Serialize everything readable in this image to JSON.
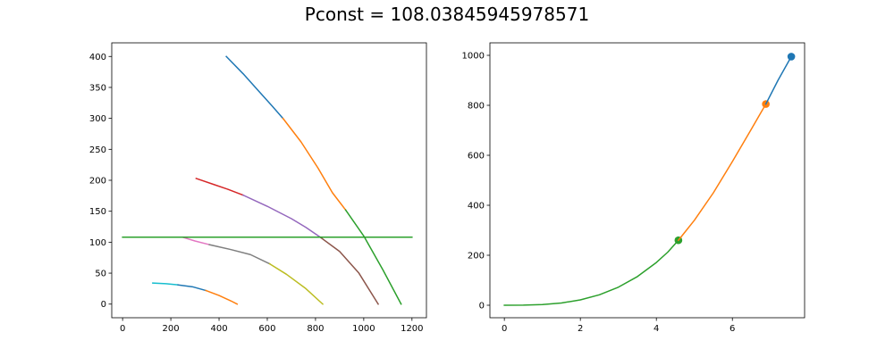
{
  "suptitle": "Pconst = 108.03845945978571",
  "chart_data": [
    {
      "type": "line",
      "xlim": [
        -45,
        1260
      ],
      "ylim": [
        -22,
        422
      ],
      "xticks": [
        0,
        200,
        400,
        600,
        800,
        1000,
        1200
      ],
      "yticks": [
        0,
        50,
        100,
        150,
        200,
        250,
        300,
        350,
        400
      ],
      "grid": false,
      "series": [
        {
          "color": "#1f77b4",
          "x": [
            430,
            500,
            560,
            620,
            665
          ],
          "y": [
            400,
            372,
            346,
            320,
            300
          ]
        },
        {
          "color": "#ff7f0e",
          "x": [
            665,
            740,
            810,
            870,
            925
          ],
          "y": [
            300,
            262,
            220,
            180,
            152
          ]
        },
        {
          "color": "#2ca02c",
          "x": [
            925,
            1000,
            1080,
            1155
          ],
          "y": [
            152,
            110,
            55,
            0
          ]
        },
        {
          "color": "#d62728",
          "x": [
            305,
            380,
            440,
            500
          ],
          "y": [
            203,
            193,
            185,
            176
          ]
        },
        {
          "color": "#9467bd",
          "x": [
            500,
            600,
            700,
            760,
            820
          ],
          "y": [
            176,
            158,
            138,
            124,
            108
          ]
        },
        {
          "color": "#8c564b",
          "x": [
            820,
            900,
            980,
            1060
          ],
          "y": [
            108,
            85,
            50,
            0
          ]
        },
        {
          "color": "#e377c2",
          "x": [
            250,
            300,
            360
          ],
          "y": [
            108,
            102,
            96
          ]
        },
        {
          "color": "#7f7f7f",
          "x": [
            360,
            450,
            530,
            610
          ],
          "y": [
            96,
            88,
            80,
            65
          ]
        },
        {
          "color": "#bcbd22",
          "x": [
            610,
            680,
            760,
            830
          ],
          "y": [
            65,
            48,
            25,
            0
          ]
        },
        {
          "color": "#17becf",
          "x": [
            125,
            180,
            230
          ],
          "y": [
            34,
            33,
            31
          ]
        },
        {
          "color": "#1f77b4",
          "x": [
            230,
            290,
            345
          ],
          "y": [
            31,
            28,
            22
          ]
        },
        {
          "color": "#ff7f0e",
          "x": [
            345,
            400,
            450,
            475
          ],
          "y": [
            22,
            14,
            5,
            0
          ]
        },
        {
          "color": "#2ca02c",
          "x": [
            0,
            1200
          ],
          "y": [
            108.04,
            108.04
          ]
        }
      ]
    },
    {
      "type": "line",
      "xlim": [
        -0.38,
        7.9
      ],
      "ylim": [
        -50,
        1050
      ],
      "xticks": [
        0,
        2,
        4,
        6
      ],
      "yticks": [
        0,
        200,
        400,
        600,
        800,
        1000
      ],
      "grid": false,
      "series": [
        {
          "color": "#2ca02c",
          "x": [
            0,
            0.5,
            1.0,
            1.5,
            2.0,
            2.5,
            3.0,
            3.5,
            4.0,
            4.3,
            4.58
          ],
          "y": [
            0,
            0.5,
            2.7,
            9.0,
            21.4,
            41.8,
            72.2,
            114.6,
            171.1,
            212.5,
            260
          ],
          "marker_index": 10
        },
        {
          "color": "#ff7f0e",
          "x": [
            4.58,
            5.0,
            5.5,
            6.0,
            6.5,
            6.88
          ],
          "y": [
            260,
            340,
            450,
            575,
            705,
            805
          ],
          "marker_index": 5
        },
        {
          "color": "#1f77b4",
          "x": [
            6.88,
            7.2,
            7.55
          ],
          "y": [
            805,
            900,
            995
          ],
          "marker_index": 2
        }
      ]
    }
  ]
}
